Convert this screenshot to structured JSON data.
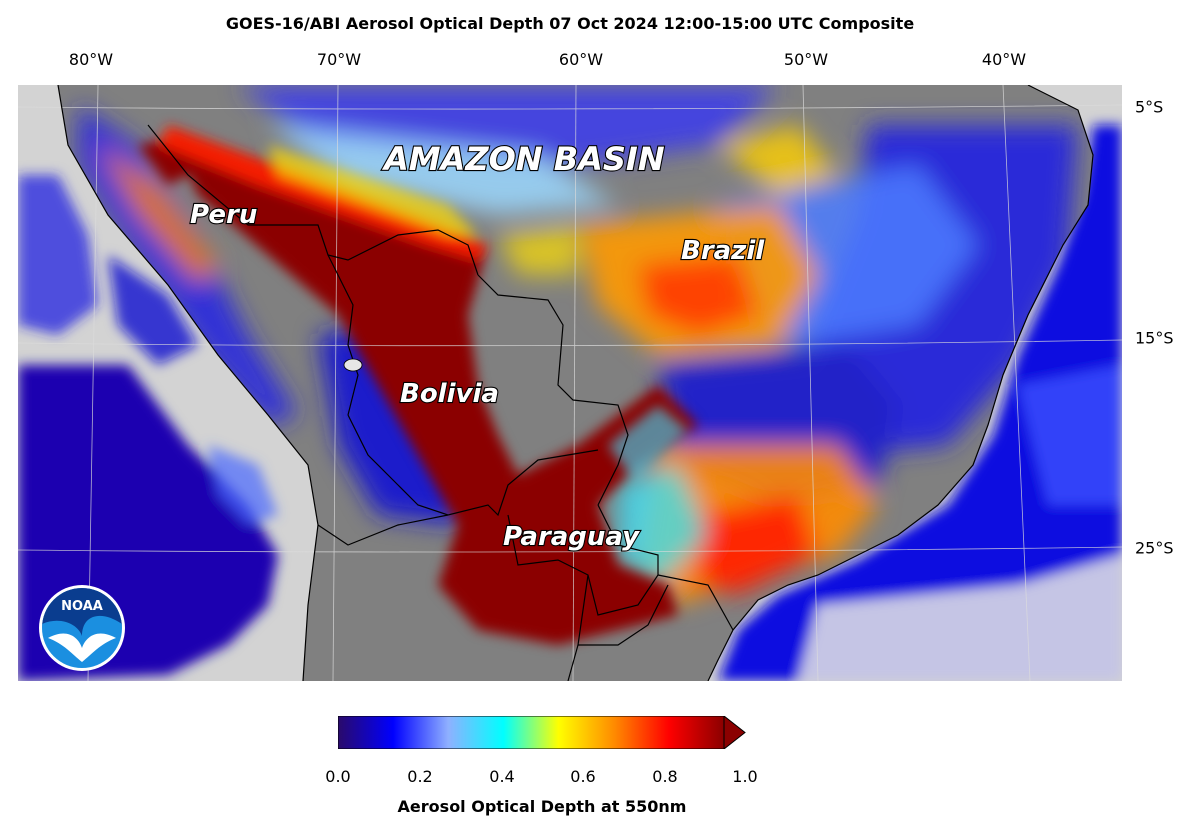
{
  "title": "GOES-16/ABI Aerosol Optical Depth  07 Oct 2024 12:00-15:00 UTC Composite",
  "longitude_labels": [
    "80°W",
    "70°W",
    "60°W",
    "50°W",
    "40°W"
  ],
  "latitude_labels": [
    "5°S",
    "15°S",
    "25°S"
  ],
  "region_labels": {
    "amazon": "AMAZON BASIN",
    "peru": "Peru",
    "brazil": "Brazil",
    "bolivia": "Bolivia",
    "paraguay": "Paraguay"
  },
  "colorbar": {
    "ticks": [
      "0.0",
      "0.2",
      "0.4",
      "0.6",
      "0.8",
      "1.0"
    ],
    "label": "Aerosol Optical Depth at 550nm",
    "range": [
      0.0,
      1.0
    ],
    "extend": "max",
    "colors": [
      "#2a0a6a",
      "#0000ff",
      "#8fb0ff",
      "#00ffff",
      "#ffff00",
      "#ff8c00",
      "#ff0000",
      "#8b0000"
    ]
  },
  "logo": "noaa-logo",
  "map_colors": {
    "land": "#808080",
    "no_data": "#d3d3d3",
    "ocean_low_aod": "#1a00b0",
    "heavy_smoke": "#8b0000"
  }
}
